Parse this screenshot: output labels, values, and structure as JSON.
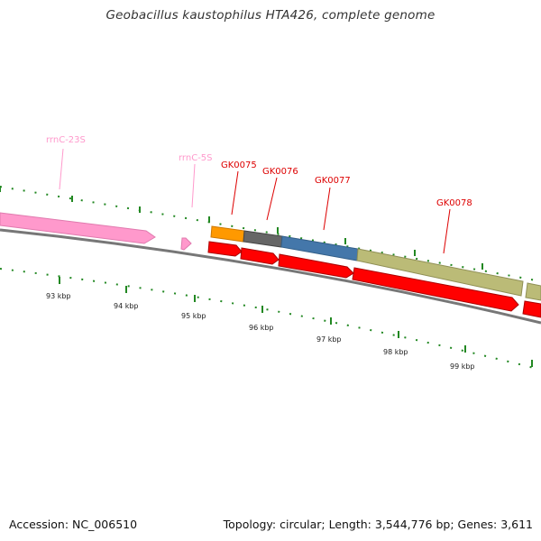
{
  "title": "Geobacillus kaustophilus HTA426, complete genome",
  "footer": {
    "accession": "Accession: NC_006510",
    "summary": "Topology: circular; Length: 3,544,776 bp; Genes: 3,611"
  },
  "ticks": [
    "93 kbp",
    "94 kbp",
    "95 kbp",
    "96 kbp",
    "97 kbp",
    "98 kbp",
    "99 kbp"
  ],
  "labels": {
    "rrnc23s": "rrnC-23S",
    "rrnc5s": "rrnC-5S",
    "gk0075": "GK0075",
    "gk0076": "GK0076",
    "gk0077": "GK0077",
    "gk0078": "GK0078"
  },
  "colors": {
    "rrna": "#ff99cc",
    "gene": "#ff0000",
    "backbone": "#777777",
    "tick": "#228822",
    "cog_orange": "#ff9900",
    "cog_gray": "#666666",
    "cog_blue": "#4477aa",
    "cog_olive": "#bbbb77"
  }
}
